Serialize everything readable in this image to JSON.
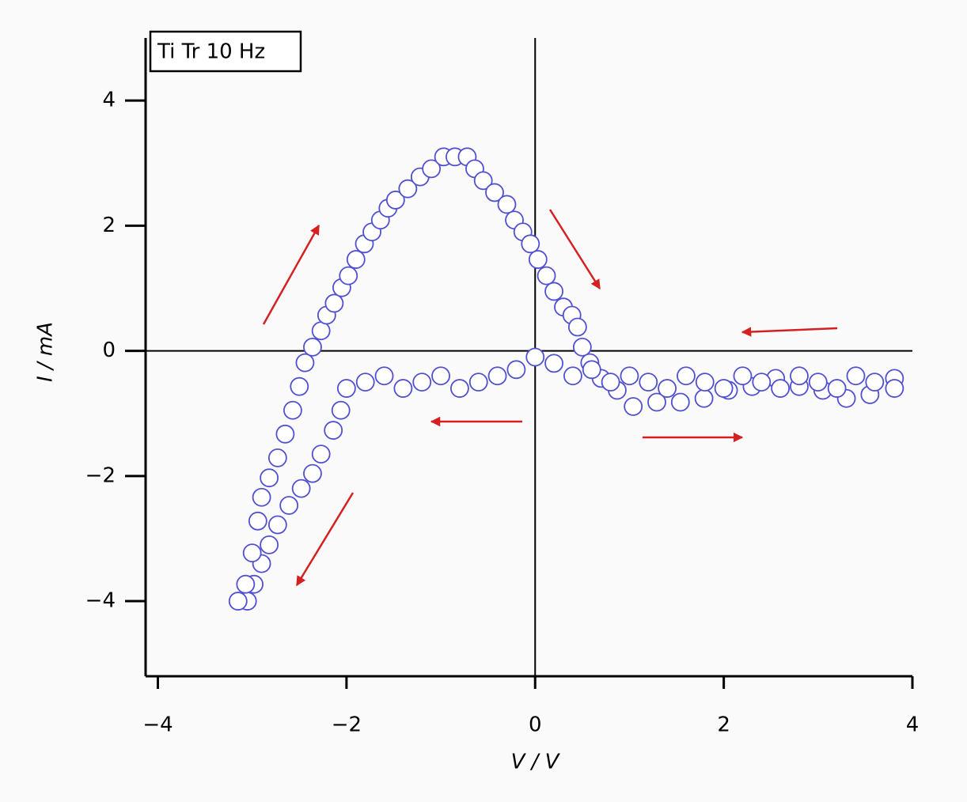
{
  "chart_data": {
    "type": "scatter",
    "annotation": "Ti Tr 10 Hz",
    "xlabel": "V / V",
    "ylabel": "I / mA",
    "color": "#5050d0",
    "x": [
      -2.0,
      -2.06,
      -2.14,
      -2.27,
      -2.36,
      -2.48,
      -2.61,
      -2.73,
      -2.82,
      -2.9,
      -2.98,
      -3.05,
      -3.15,
      -3.07,
      -3.0,
      -2.94,
      -2.9,
      -2.82,
      -2.73,
      -2.65,
      -2.57,
      -2.5,
      -2.44,
      -2.36,
      -2.27,
      -2.21,
      -2.13,
      -2.05,
      -1.98,
      -1.9,
      -1.81,
      -1.73,
      -1.64,
      -1.56,
      -1.48,
      -1.35,
      -1.22,
      -1.1,
      -0.97,
      -0.85,
      -0.72,
      -0.64,
      -0.55,
      -0.43,
      -0.3,
      -0.22,
      -0.13,
      -0.05,
      0.03,
      0.12,
      0.2,
      0.3,
      0.39,
      0.45,
      0.5,
      0.58,
      0.7,
      0.87,
      1.04,
      1.29,
      1.54,
      1.79,
      2.05,
      2.3,
      2.55,
      2.8,
      3.05,
      3.3,
      3.55,
      3.81,
      3.81,
      3.6,
      3.4,
      3.2,
      3.0,
      2.8,
      2.6,
      2.4,
      2.2,
      2.0,
      1.8,
      1.6,
      1.4,
      1.2,
      1.0,
      0.8,
      0.6,
      0.4,
      0.2,
      0,
      -0.2,
      -0.4,
      -0.6,
      -0.8,
      -1.0,
      -1.2,
      -1.4,
      -1.6,
      -1.8
    ],
    "values": [
      -0.6,
      -0.95,
      -1.27,
      -1.65,
      -1.96,
      -2.2,
      -2.47,
      -2.78,
      -3.1,
      -3.4,
      -3.73,
      -4.0,
      -4.0,
      -3.73,
      -3.23,
      -2.72,
      -2.34,
      -2.03,
      -1.71,
      -1.33,
      -0.95,
      -0.57,
      -0.19,
      0.06,
      0.32,
      0.57,
      0.76,
      1.01,
      1.2,
      1.46,
      1.71,
      1.9,
      2.09,
      2.28,
      2.41,
      2.59,
      2.78,
      2.91,
      3.1,
      3.1,
      3.1,
      2.91,
      2.72,
      2.53,
      2.34,
      2.09,
      1.9,
      1.71,
      1.46,
      1.2,
      0.95,
      0.7,
      0.57,
      0.38,
      0.06,
      -0.19,
      -0.44,
      -0.63,
      -0.89,
      -0.82,
      -0.82,
      -0.76,
      -0.63,
      -0.57,
      -0.44,
      -0.57,
      -0.63,
      -0.76,
      -0.7,
      -0.44,
      -0.6,
      -0.5,
      -0.4,
      -0.6,
      -0.5,
      -0.4,
      -0.6,
      -0.5,
      -0.4,
      -0.6,
      -0.5,
      -0.4,
      -0.6,
      -0.5,
      -0.4,
      -0.5,
      -0.3,
      -0.4,
      -0.2,
      -0.1,
      -0.3,
      -0.4,
      -0.5,
      -0.6,
      -0.4,
      -0.5,
      -0.6,
      -0.4,
      -0.5
    ],
    "xlim": [
      -4.13,
      4
    ],
    "ylim": [
      -5.2,
      5.0
    ],
    "xticks": [
      {
        "value": -4,
        "label": "−4"
      },
      {
        "value": -2,
        "label": "−2"
      },
      0,
      2,
      4
    ],
    "yticks": [
      {
        "value": -4,
        "label": "−4"
      },
      {
        "value": -2,
        "label": "−2"
      },
      0,
      2,
      4
    ]
  }
}
